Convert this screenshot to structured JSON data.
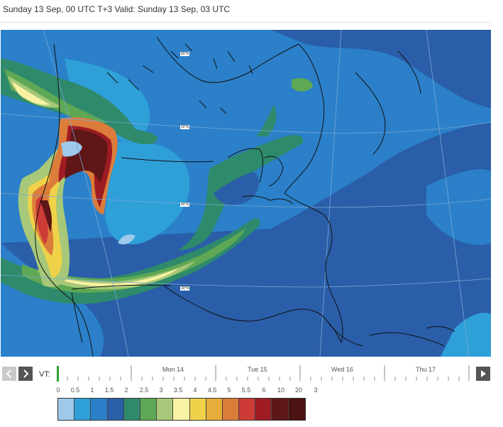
{
  "header": {
    "text": "Sunday 13 Sep, 00 UTC T+3 Valid: Sunday 13 Sep, 03 UTC"
  },
  "map": {
    "lat_labels": [
      "60°N",
      "50°N",
      "40°N",
      "30°N"
    ]
  },
  "timeline": {
    "vt_label": "VT:",
    "prev_icon": "chevron-left-icon",
    "next_icon": "chevron-right-icon",
    "play_icon": "play-icon",
    "days": [
      "Mon 14",
      "Tue 15",
      "Wed 16",
      "Thu 17"
    ]
  },
  "legend": {
    "labels": [
      "0",
      "0.5",
      "1",
      "1.5",
      "2",
      "2.5",
      "3",
      "3.5",
      "4",
      "4.5",
      "5",
      "5.5",
      "6",
      "10",
      "20",
      "3"
    ],
    "colors": [
      "#9ec9ea",
      "#2f9fd8",
      "#2b80c9",
      "#2a5ea8",
      "#2e8a6a",
      "#5ea855",
      "#a6c878",
      "#f8f2a2",
      "#efd24a",
      "#e7ad3a",
      "#dc7c3a",
      "#cc3b35",
      "#9e1b24",
      "#5e1616",
      "#4a1212"
    ]
  }
}
